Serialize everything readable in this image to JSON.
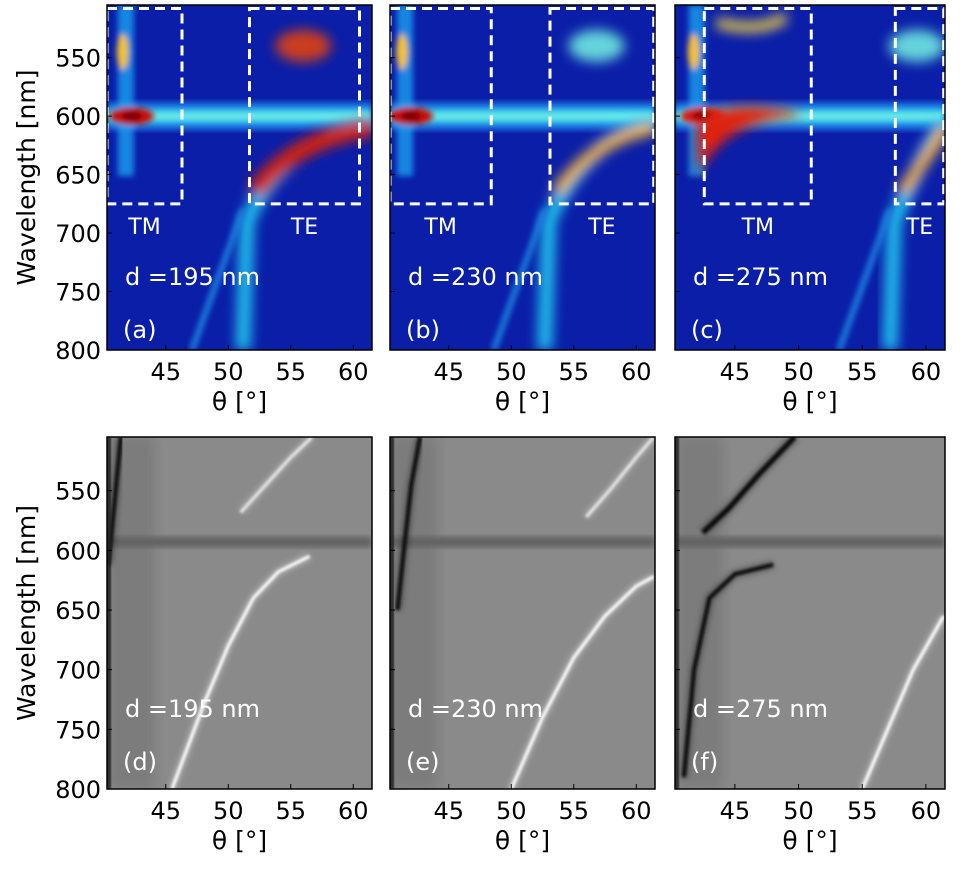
{
  "chart_data": {
    "type": "heatmap",
    "axis": {
      "xlabel": "θ [°]",
      "ylabel": "Wavelength [nm]",
      "xlim": [
        40.3,
        61.5
      ],
      "ylim": [
        800,
        505
      ],
      "xticks": [
        45,
        50,
        55,
        60
      ],
      "yticks": [
        550,
        600,
        650,
        700,
        750,
        800
      ],
      "xtick_labels": [
        "45",
        "50",
        "55",
        "60"
      ],
      "ytick_labels": [
        "550",
        "600",
        "650",
        "700",
        "750",
        "800"
      ]
    },
    "panels": [
      {
        "label": "(a)",
        "thickness_label": "d =195 nm",
        "colormap": "jet",
        "kind": "measured",
        "resonance_wavelength_nm": 600,
        "tm_mode_theta": 41.8,
        "te_mode_start_theta": 51.5,
        "boxes": [
          {
            "label": "TM",
            "theta_range": [
              40.3,
              46.3
            ],
            "wavelength_range": [
              508,
              675
            ]
          },
          {
            "label": "TE",
            "theta_range": [
              51.7,
              60.5
            ],
            "wavelength_range": [
              508,
              675
            ]
          }
        ],
        "show_ylabel": true
      },
      {
        "label": "(b)",
        "thickness_label": "d =230 nm",
        "colormap": "jet",
        "kind": "measured",
        "resonance_wavelength_nm": 600,
        "tm_mode_theta": 41.5,
        "te_mode_start_theta": 53.0,
        "boxes": [
          {
            "label": "TM",
            "theta_range": [
              40.3,
              48.4
            ],
            "wavelength_range": [
              508,
              675
            ]
          },
          {
            "label": "TE",
            "theta_range": [
              53.1,
              61.4
            ],
            "wavelength_range": [
              508,
              675
            ]
          }
        ],
        "show_ylabel": false
      },
      {
        "label": "(c)",
        "thickness_label": "d =275 nm",
        "colormap": "jet",
        "kind": "measured",
        "resonance_wavelength_nm": 600,
        "tm_mode_theta": 42.0,
        "te_mode_start_theta": 57.5,
        "boxes": [
          {
            "label": "TM",
            "theta_range": [
              42.6,
              51.0
            ],
            "wavelength_range": [
              508,
              675
            ]
          },
          {
            "label": "TE",
            "theta_range": [
              57.6,
              61.4
            ],
            "wavelength_range": [
              508,
              675
            ]
          }
        ],
        "show_ylabel": false
      },
      {
        "label": "(d)",
        "thickness_label": "d =195 nm",
        "colormap": "gray",
        "kind": "simulated",
        "resonance_wavelength_nm": 593,
        "show_ylabel": true,
        "te_curve": {
          "theta": [
            45.5,
            48,
            50,
            52,
            54,
            56.5
          ],
          "wavelength": [
            800,
            730,
            680,
            640,
            618,
            605
          ]
        },
        "te_upper_curve": {
          "theta": [
            51,
            53,
            55,
            56.7
          ],
          "wavelength": [
            568,
            545,
            522,
            505
          ]
        },
        "tm_curve": {
          "theta": [
            40.4,
            40.9,
            41.4
          ],
          "wavelength": [
            612,
            560,
            505
          ]
        }
      },
      {
        "label": "(e)",
        "thickness_label": "d =230 nm",
        "colormap": "gray",
        "kind": "simulated",
        "resonance_wavelength_nm": 593,
        "show_ylabel": false,
        "te_curve": {
          "theta": [
            50,
            52.5,
            55,
            57.5,
            60,
            61.4
          ],
          "wavelength": [
            800,
            740,
            690,
            655,
            630,
            622
          ]
        },
        "te_upper_curve": {
          "theta": [
            56,
            58,
            60,
            61.4
          ],
          "wavelength": [
            572,
            548,
            522,
            505
          ]
        },
        "tm_curve": {
          "theta": [
            40.9,
            41.4,
            42.0,
            42.7
          ],
          "wavelength": [
            650,
            600,
            545,
            505
          ]
        }
      },
      {
        "label": "(f)",
        "thickness_label": "d =275 nm",
        "colormap": "gray",
        "kind": "simulated",
        "resonance_wavelength_nm": 593,
        "show_ylabel": false,
        "te_curve": {
          "theta": [
            55,
            57,
            59,
            61.4
          ],
          "wavelength": [
            800,
            750,
            700,
            655
          ]
        },
        "tm_curve": {
          "theta": [
            41.0,
            41.8,
            43.0,
            45.0,
            48.0
          ],
          "wavelength": [
            790,
            700,
            640,
            620,
            612
          ]
        },
        "tm_upper_curve": {
          "theta": [
            42.5,
            44.5,
            47,
            49.7
          ],
          "wavelength": [
            585,
            565,
            535,
            505
          ]
        }
      }
    ]
  }
}
